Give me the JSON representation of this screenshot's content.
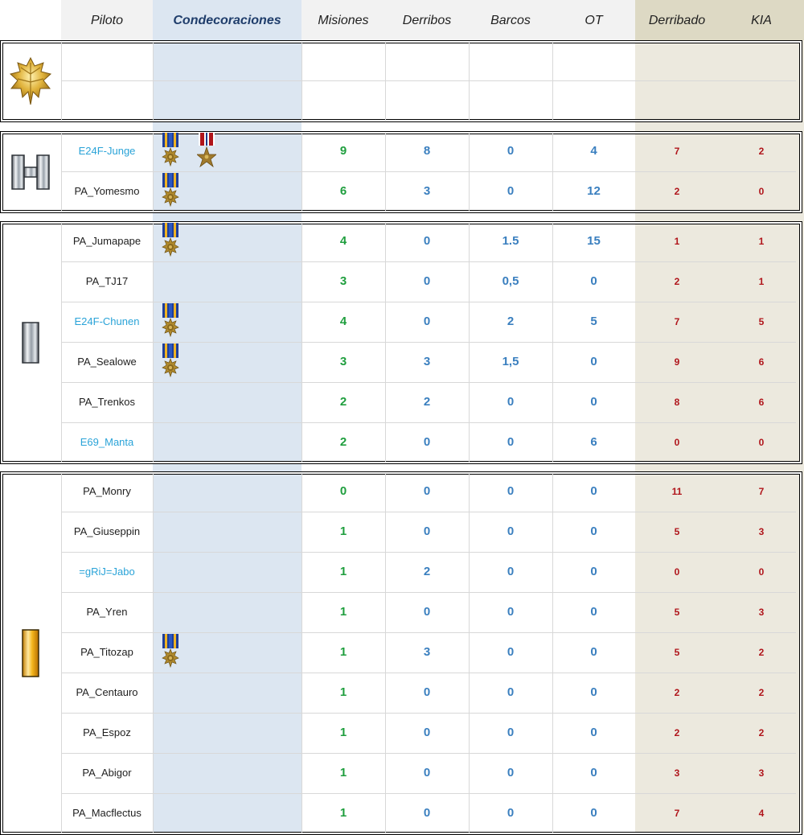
{
  "header": {
    "piloto": "Piloto",
    "condecoraciones": "Condecoraciones",
    "misiones": "Misiones",
    "derribos": "Derribos",
    "barcos": "Barcos",
    "ot": "OT",
    "derribado": "Derribado",
    "kia": "KIA"
  },
  "ranks": {
    "major": "oak-leaf-gold-insignia",
    "captain": "silver-double-bar-insignia",
    "first_lieutenant": "silver-bar-insignia",
    "second_lieutenant": "gold-bar-insignia"
  },
  "colors": {
    "misiones": "#1f9e3e",
    "stats": "#3a7fbf",
    "losses": "#b0151b",
    "link_name": "#2aa3d8",
    "decor_column": "#dce6f1",
    "loss_columns": "#ece9de"
  },
  "sections": [
    {
      "rank": "major",
      "pilots": [
        {
          "name": "",
          "link": false,
          "misiones": "",
          "derribos": "",
          "barcos": "",
          "ot": "",
          "derribado": "",
          "kia": "",
          "medals": []
        },
        {
          "name": "",
          "link": false,
          "misiones": "",
          "derribos": "",
          "barcos": "",
          "ot": "",
          "derribado": "",
          "kia": "",
          "medals": []
        }
      ]
    },
    {
      "rank": "captain",
      "pilots": [
        {
          "name": "E24F-Junge",
          "link": true,
          "misiones": "9",
          "derribos": "8",
          "barcos": "0",
          "ot": "4",
          "derribado": "7",
          "kia": "2",
          "medals": [
            "air-medal",
            "bronze-star"
          ]
        },
        {
          "name": "PA_Yomesmo",
          "link": false,
          "misiones": "6",
          "derribos": "3",
          "barcos": "0",
          "ot": "12",
          "derribado": "2",
          "kia": "0",
          "medals": [
            "air-medal"
          ]
        }
      ]
    },
    {
      "rank": "first_lieutenant",
      "pilots": [
        {
          "name": "PA_Jumapape",
          "link": false,
          "misiones": "4",
          "derribos": "0",
          "barcos": "1.5",
          "ot": "15",
          "derribado": "1",
          "kia": "1",
          "medals": [
            "air-medal"
          ]
        },
        {
          "name": "PA_TJ17",
          "link": false,
          "misiones": "3",
          "derribos": "0",
          "barcos": "0,5",
          "ot": "0",
          "derribado": "2",
          "kia": "1",
          "medals": []
        },
        {
          "name": "E24F-Chunen",
          "link": true,
          "misiones": "4",
          "derribos": "0",
          "barcos": "2",
          "ot": "5",
          "derribado": "7",
          "kia": "5",
          "medals": [
            "air-medal"
          ]
        },
        {
          "name": "PA_Sealowe",
          "link": false,
          "misiones": "3",
          "derribos": "3",
          "barcos": "1,5",
          "ot": "0",
          "derribado": "9",
          "kia": "6",
          "medals": [
            "air-medal"
          ]
        },
        {
          "name": "PA_Trenkos",
          "link": false,
          "misiones": "2",
          "derribos": "2",
          "barcos": "0",
          "ot": "0",
          "derribado": "8",
          "kia": "6",
          "medals": []
        },
        {
          "name": "E69_Manta",
          "link": true,
          "misiones": "2",
          "derribos": "0",
          "barcos": "0",
          "ot": "6",
          "derribado": "0",
          "kia": "0",
          "medals": []
        }
      ]
    },
    {
      "rank": "second_lieutenant",
      "pilots": [
        {
          "name": "PA_Monry",
          "link": false,
          "misiones": "0",
          "derribos": "0",
          "barcos": "0",
          "ot": "0",
          "derribado": "11",
          "kia": "7",
          "medals": []
        },
        {
          "name": "PA_Giuseppin",
          "link": false,
          "misiones": "1",
          "derribos": "0",
          "barcos": "0",
          "ot": "0",
          "derribado": "5",
          "kia": "3",
          "medals": []
        },
        {
          "name": "=gRiJ=Jabo",
          "link": true,
          "misiones": "1",
          "derribos": "2",
          "barcos": "0",
          "ot": "0",
          "derribado": "0",
          "kia": "0",
          "medals": []
        },
        {
          "name": "PA_Yren",
          "link": false,
          "misiones": "1",
          "derribos": "0",
          "barcos": "0",
          "ot": "0",
          "derribado": "5",
          "kia": "3",
          "medals": []
        },
        {
          "name": "PA_Titozap",
          "link": false,
          "misiones": "1",
          "derribos": "3",
          "barcos": "0",
          "ot": "0",
          "derribado": "5",
          "kia": "2",
          "medals": [
            "air-medal"
          ]
        },
        {
          "name": "PA_Centauro",
          "link": false,
          "misiones": "1",
          "derribos": "0",
          "barcos": "0",
          "ot": "0",
          "derribado": "2",
          "kia": "2",
          "medals": []
        },
        {
          "name": "PA_Espoz",
          "link": false,
          "misiones": "1",
          "derribos": "0",
          "barcos": "0",
          "ot": "0",
          "derribado": "2",
          "kia": "2",
          "medals": []
        },
        {
          "name": "PA_Abigor",
          "link": false,
          "misiones": "1",
          "derribos": "0",
          "barcos": "0",
          "ot": "0",
          "derribado": "3",
          "kia": "3",
          "medals": []
        },
        {
          "name": "PA_Macflectus",
          "link": false,
          "misiones": "1",
          "derribos": "0",
          "barcos": "0",
          "ot": "0",
          "derribado": "7",
          "kia": "4",
          "medals": []
        }
      ]
    }
  ]
}
